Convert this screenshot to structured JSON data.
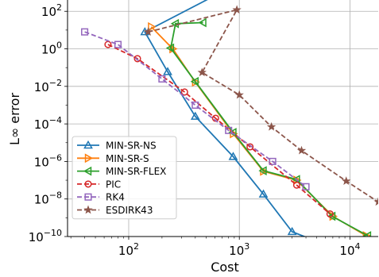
{
  "chart_data": {
    "type": "line",
    "title": "",
    "xlabel": "Cost",
    "ylabel": "L∞ error",
    "x_scale": "log",
    "y_scale": "log",
    "xlim": [
      28,
      18000
    ],
    "ylim": [
      1e-10,
      400
    ],
    "grid": true,
    "legend_position": "lower-left",
    "x_ticks": [
      {
        "value": 100,
        "base": "10",
        "exp": "2"
      },
      {
        "value": 1000,
        "base": "10",
        "exp": "3"
      },
      {
        "value": 10000,
        "base": "10",
        "exp": "4"
      }
    ],
    "y_ticks": [
      {
        "value": 100,
        "base": "10",
        "exp": "2"
      },
      {
        "value": 1,
        "base": "10",
        "exp": "0"
      },
      {
        "value": 0.01,
        "base": "10",
        "exp": "−2"
      },
      {
        "value": 0.0001,
        "base": "10",
        "exp": "−4"
      },
      {
        "value": 1e-06,
        "base": "10",
        "exp": "−6"
      },
      {
        "value": 1e-08,
        "base": "10",
        "exp": "−8"
      },
      {
        "value": 1e-10,
        "base": "10",
        "exp": "−10"
      }
    ],
    "series": [
      {
        "name": "MIN-SR-NS",
        "color": "#1f77b4",
        "marker": "triangle-up",
        "linestyle": "solid",
        "points": [
          [
            680,
            1000
          ],
          [
            140,
            8
          ],
          [
            225,
            0.06
          ],
          [
            400,
            0.00025
          ],
          [
            880,
            1.8e-06
          ],
          [
            1650,
            1.8e-08
          ],
          [
            3000,
            1.8e-10
          ],
          [
            6500,
            3e-11
          ]
        ]
      },
      {
        "name": "MIN-SR-S",
        "color": "#ff7f0e",
        "marker": "triangle-right",
        "linestyle": "solid",
        "points": [
          [
            160,
            15
          ],
          [
            250,
            1.0
          ],
          [
            400,
            0.017
          ],
          [
            880,
            3e-05
          ],
          [
            1650,
            3e-07
          ],
          [
            3300,
            1e-07
          ],
          [
            7000,
            1.2e-09
          ],
          [
            14000,
            1.1e-10
          ]
        ]
      },
      {
        "name": "MIN-SR-FLEX",
        "color": "#2ca02c",
        "marker": "triangle-left",
        "linestyle": "solid",
        "points": [
          [
            470,
            25
          ],
          [
            265,
            22
          ],
          [
            240,
            1.1
          ],
          [
            400,
            0.018
          ],
          [
            880,
            3.5e-05
          ],
          [
            1650,
            3.2e-07
          ],
          [
            3300,
            1.1e-07
          ],
          [
            6900,
            1.2e-09
          ],
          [
            14500,
            1.1e-10
          ]
        ]
      },
      {
        "name": "PIC",
        "color": "#d62728",
        "marker": "circle",
        "linestyle": "dashed",
        "points": [
          [
            65,
            1.7
          ],
          [
            120,
            0.3
          ],
          [
            320,
            0.005
          ],
          [
            610,
            0.0002
          ],
          [
            1250,
            6e-06
          ],
          [
            3300,
            5.5e-08
          ],
          [
            6600,
            1.6e-09
          ]
        ]
      },
      {
        "name": "RK4",
        "color": "#9467bd",
        "marker": "square",
        "linestyle": "dashed",
        "points": [
          [
            40,
            8
          ],
          [
            80,
            1.7
          ],
          [
            200,
            0.025
          ],
          [
            400,
            0.001
          ],
          [
            800,
            4.5e-05
          ],
          [
            2000,
            1e-06
          ],
          [
            4000,
            4.5e-08
          ]
        ]
      },
      {
        "name": "ESDIRK43",
        "color": "#8c564b",
        "marker": "star",
        "linestyle": "dashed",
        "points": [
          [
            150,
            8
          ],
          [
            950,
            120
          ],
          [
            460,
            0.055
          ],
          [
            1000,
            0.0035
          ],
          [
            1950,
            7e-05
          ],
          [
            3650,
            3.8e-06
          ],
          [
            9250,
            9e-08
          ],
          [
            18000,
            7e-09
          ]
        ]
      }
    ]
  }
}
